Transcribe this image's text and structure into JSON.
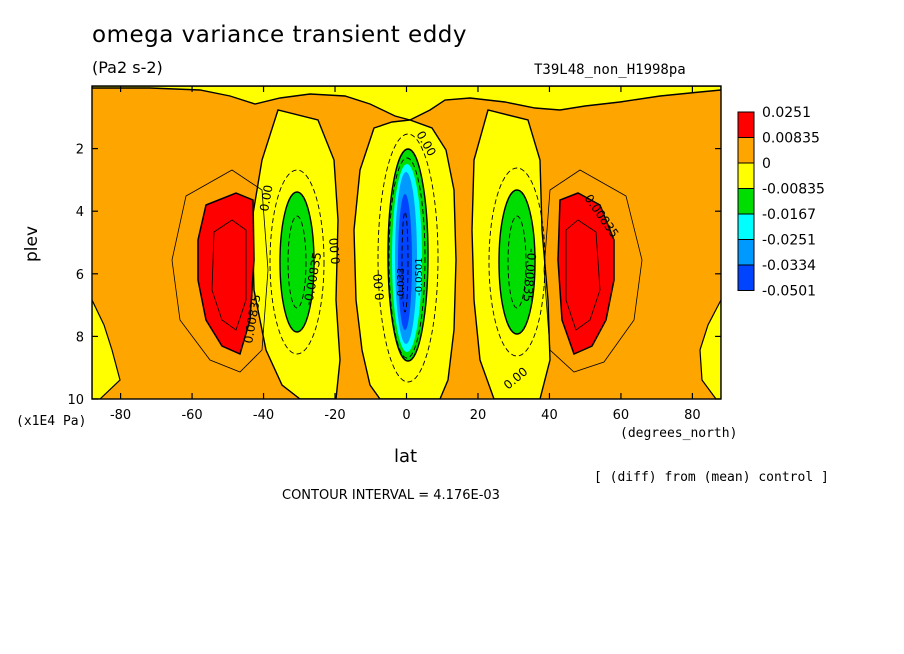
{
  "chart_data": {
    "type": "contour",
    "title": "omega variance transient eddy",
    "units": "(Pa2 s-2)",
    "experiment": "T39L48_non_H1998pa",
    "xlabel": "lat",
    "xunit": "(degrees_north)",
    "ylabel": "plev",
    "yunit": "(x1E4 Pa)",
    "xlim": [
      -88,
      88
    ],
    "ylim": [
      10,
      0
    ],
    "xticks": [
      "-80",
      "-60",
      "-40",
      "-20",
      "0",
      "20",
      "40",
      "60",
      "80"
    ],
    "yticks": [
      "2",
      "4",
      "6",
      "8",
      "10"
    ],
    "contour_interval_text": "CONTOUR INTERVAL = 4.176E-03",
    "note": "[ (diff) from (mean) control ]",
    "contour_labels": [
      "0.00",
      "0.00",
      "0.00",
      "0.00",
      "0.00",
      "0.00835",
      "0.00835",
      "-0.00835",
      "-0.00835",
      "-0.033",
      "-0.0501"
    ],
    "legend": {
      "placement": "right",
      "levels": [
        "0.0251",
        "0.00835",
        "0",
        "-0.00835",
        "-0.0167",
        "-0.0251",
        "-0.0334",
        "-0.0501"
      ],
      "colors": [
        "#ff0000",
        "#ffa500",
        "#ffff00",
        "#00dd00",
        "#00ffff",
        "#0099ff",
        "#0044ff"
      ]
    },
    "features": [
      {
        "name": "south positive maximum",
        "lat": -50,
        "plev": 5.7,
        "value": 0.0251
      },
      {
        "name": "north positive maximum",
        "lat": 50,
        "plev": 5.7,
        "value": 0.0251
      },
      {
        "name": "south negative minimum",
        "lat": -30,
        "plev": 5.2,
        "value": -0.0167
      },
      {
        "name": "north negative minimum",
        "lat": 30,
        "plev": 5.2,
        "value": -0.0167
      },
      {
        "name": "equatorial negative minimum",
        "lat": 0,
        "plev": 5.5,
        "value": -0.0501
      }
    ]
  }
}
